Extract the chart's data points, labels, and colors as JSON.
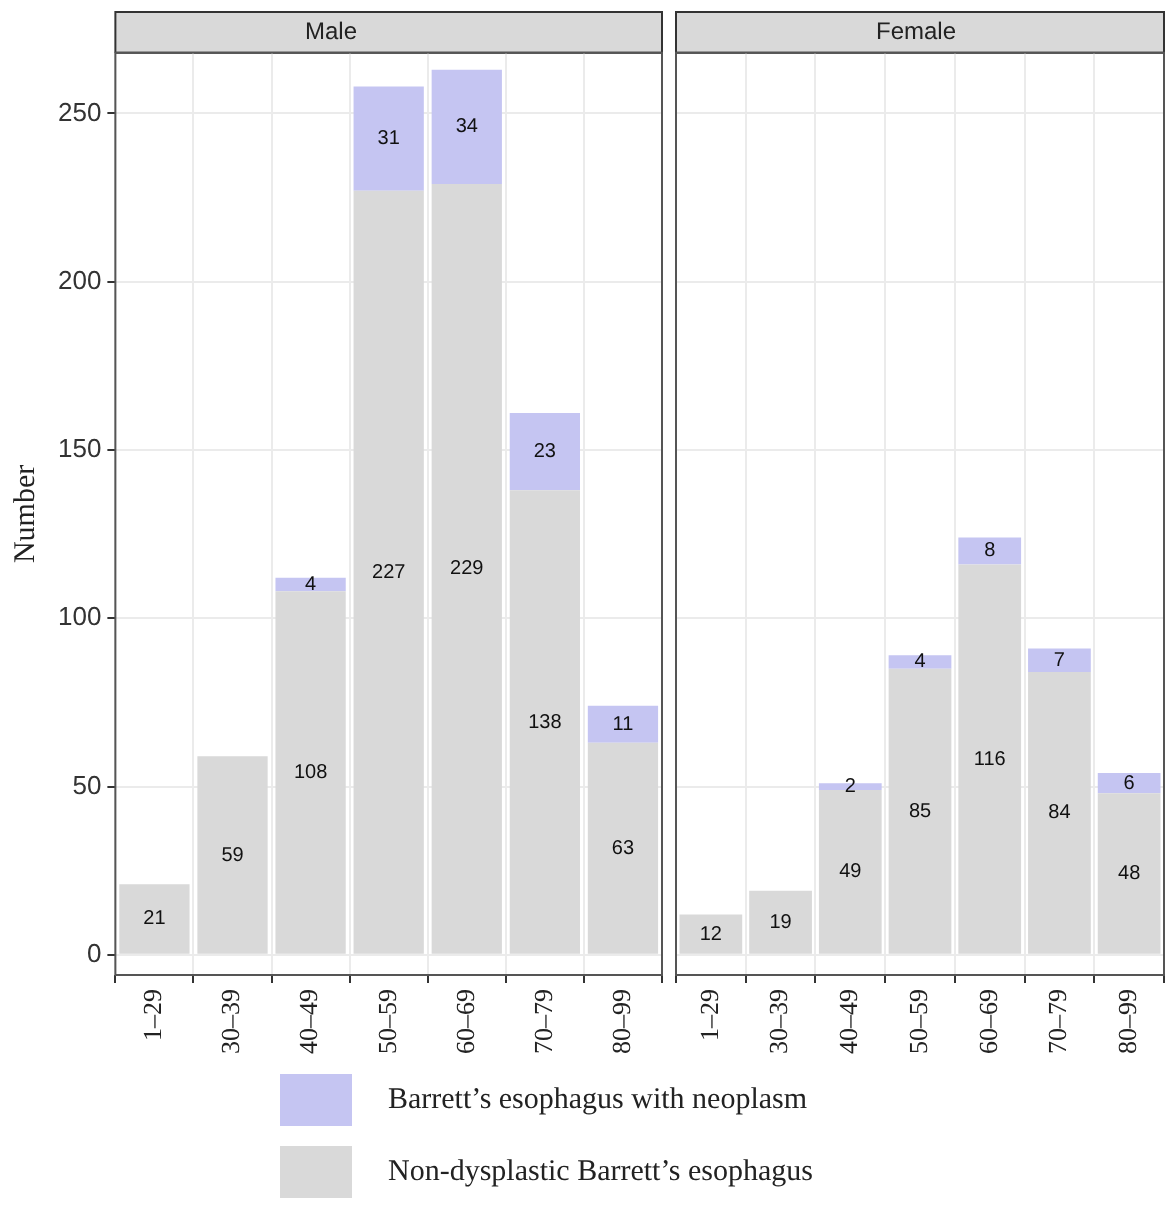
{
  "chart_data": [
    {
      "type": "bar",
      "title": "Male",
      "ylabel": "Number",
      "stacked": true,
      "data_labels": true,
      "grid": true,
      "legend": "bottom",
      "categories": [
        "1–29",
        "30–39",
        "40–49",
        "50–59",
        "60–69",
        "70–79",
        "80–99"
      ],
      "ylim": [
        -6,
        268
      ],
      "yticks": [
        0,
        50,
        100,
        150,
        200,
        250
      ],
      "series": [
        {
          "name": "Non-dysplastic Barrett’s esophagus",
          "color": "#d9d9d9",
          "values": [
            21,
            59,
            108,
            227,
            229,
            138,
            63
          ]
        },
        {
          "name": "Barrett’s esophagus with neoplasm",
          "color": "#c5c5f2",
          "values": [
            null,
            null,
            4,
            31,
            34,
            23,
            11
          ]
        }
      ]
    },
    {
      "type": "bar",
      "title": "Female",
      "stacked": true,
      "data_labels": true,
      "grid": true,
      "tick_labels": "x",
      "categories": [
        "1–29",
        "30–39",
        "40–49",
        "50–59",
        "60–69",
        "70–79",
        "80–99"
      ],
      "ylim": [
        -6,
        268
      ],
      "yticks": [
        0,
        50,
        100,
        150,
        200,
        250
      ],
      "series": [
        {
          "color": "#d9d9d9",
          "values": [
            12,
            19,
            49,
            85,
            116,
            84,
            48
          ]
        },
        {
          "color": "#c5c5f2",
          "values": [
            null,
            null,
            2,
            4,
            8,
            7,
            6
          ]
        }
      ]
    }
  ]
}
